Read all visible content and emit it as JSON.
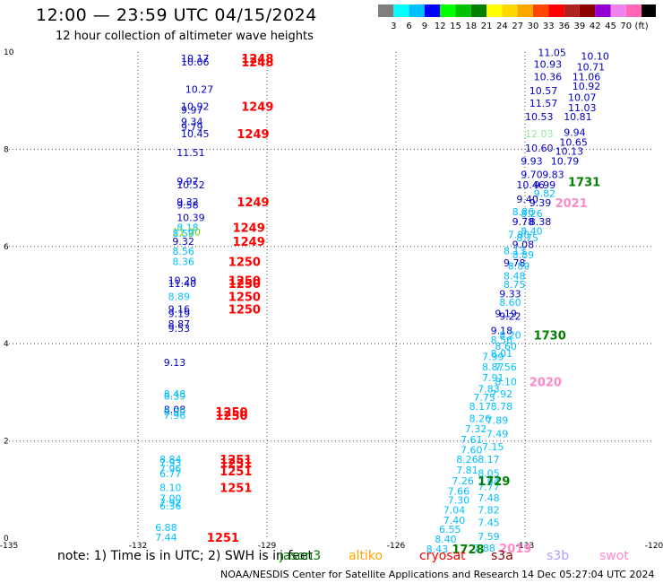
{
  "header": {
    "title": "12:00 — 23:59 UTC 04/15/2024",
    "subtitle": "12 hour collection of altimeter wave heights"
  },
  "colorbar": {
    "colors": [
      "#7f7f7f",
      "#00ffff",
      "#00bfff",
      "#0000ff",
      "#00ff00",
      "#00c000",
      "#008000",
      "#ffff00",
      "#ffd700",
      "#ffa500",
      "#ff4500",
      "#ff0000",
      "#b22222",
      "#8b0000",
      "#9400d3",
      "#ee82ee",
      "#ff69b4",
      "#000000"
    ],
    "labels": [
      "3",
      "6",
      "9",
      "12",
      "15",
      "18",
      "21",
      "24",
      "27",
      "30",
      "33",
      "36",
      "39",
      "42",
      "45",
      "70",
      "(ft)"
    ]
  },
  "chart_data": {
    "type": "scatter",
    "title": "12:00 — 23:59 UTC 04/15/2024",
    "xlabel": "",
    "ylabel": "",
    "xlim": [
      -135,
      -120
    ],
    "ylim": [
      0,
      10
    ],
    "xticks": [
      "-135",
      "-132",
      "-129",
      "-126",
      "-123",
      "-120"
    ],
    "yticks": [
      "0",
      "2",
      "4",
      "6",
      "8",
      "10"
    ],
    "grid": true,
    "wave_heights": [
      {
        "lon": -131.0,
        "lat": 9.87,
        "text": "10.17",
        "color": "#0000c8"
      },
      {
        "lon": -131.0,
        "lat": 9.8,
        "text": "10.06",
        "color": "#0000c8"
      },
      {
        "lon": -130.9,
        "lat": 9.23,
        "text": "10.27",
        "color": "#0000c8"
      },
      {
        "lon": -131.0,
        "lat": 8.88,
        "text": "10.92",
        "color": "#0000c8"
      },
      {
        "lon": -131.0,
        "lat": 8.81,
        "text": "9.97",
        "color": "#0000c8"
      },
      {
        "lon": -131.0,
        "lat": 8.57,
        "text": "9.34",
        "color": "#0000c8"
      },
      {
        "lon": -131.0,
        "lat": 8.46,
        "text": "9.79",
        "color": "#0000c8"
      },
      {
        "lon": -131.0,
        "lat": 8.32,
        "text": "10.45",
        "color": "#0000c8"
      },
      {
        "lon": -131.1,
        "lat": 7.93,
        "text": "11.51",
        "color": "#0000c8"
      },
      {
        "lon": -131.1,
        "lat": 7.34,
        "text": "9.97",
        "color": "#0000c8"
      },
      {
        "lon": -131.1,
        "lat": 7.27,
        "text": "10.52",
        "color": "#0000c8"
      },
      {
        "lon": -131.1,
        "lat": 6.92,
        "text": "9.32",
        "color": "#0000c8"
      },
      {
        "lon": -131.1,
        "lat": 6.85,
        "text": "9.58",
        "color": "#0000c8"
      },
      {
        "lon": -131.1,
        "lat": 6.6,
        "text": "10.39",
        "color": "#0000c8"
      },
      {
        "lon": -131.1,
        "lat": 6.39,
        "text": "8.18",
        "color": "#00bfff"
      },
      {
        "lon": -131.2,
        "lat": 6.3,
        "text": "11.20",
        "color": "#80d000"
      },
      {
        "lon": -131.2,
        "lat": 6.27,
        "text": "8.59",
        "color": "#00bfff"
      },
      {
        "lon": -131.2,
        "lat": 6.11,
        "text": "9.32",
        "color": "#0000c8"
      },
      {
        "lon": -131.2,
        "lat": 5.9,
        "text": "8.56",
        "color": "#00bfff"
      },
      {
        "lon": -131.2,
        "lat": 5.69,
        "text": "8.36",
        "color": "#00bfff"
      },
      {
        "lon": -131.3,
        "lat": 5.3,
        "text": "10.29",
        "color": "#0000c8"
      },
      {
        "lon": -131.3,
        "lat": 5.24,
        "text": "11.40",
        "color": "#0000c8"
      },
      {
        "lon": -131.3,
        "lat": 4.97,
        "text": "8.89",
        "color": "#00bfff"
      },
      {
        "lon": -131.3,
        "lat": 4.71,
        "text": "9.16",
        "color": "#0000c8"
      },
      {
        "lon": -131.3,
        "lat": 4.62,
        "text": "9.19",
        "color": "#0000c8"
      },
      {
        "lon": -131.3,
        "lat": 4.41,
        "text": "8.87",
        "color": "#0000c8"
      },
      {
        "lon": -131.3,
        "lat": 4.32,
        "text": "9.53",
        "color": "#0000c8"
      },
      {
        "lon": -131.4,
        "lat": 3.62,
        "text": "9.13",
        "color": "#0000c8"
      },
      {
        "lon": -131.4,
        "lat": 2.97,
        "text": "8.48",
        "color": "#00bfff"
      },
      {
        "lon": -131.4,
        "lat": 2.92,
        "text": "8.39",
        "color": "#00bfff"
      },
      {
        "lon": -131.4,
        "lat": 2.65,
        "text": "8.08",
        "color": "#0000c8"
      },
      {
        "lon": -131.4,
        "lat": 2.6,
        "text": "8.39",
        "color": "#00bfff"
      },
      {
        "lon": -131.4,
        "lat": 2.53,
        "text": "7.96",
        "color": "#00bfff"
      },
      {
        "lon": -131.5,
        "lat": 1.62,
        "text": "8.84",
        "color": "#00bfff"
      },
      {
        "lon": -131.5,
        "lat": 1.55,
        "text": "7.93",
        "color": "#00bfff"
      },
      {
        "lon": -131.5,
        "lat": 1.43,
        "text": "7.96",
        "color": "#00bfff"
      },
      {
        "lon": -131.5,
        "lat": 1.33,
        "text": "6.77",
        "color": "#00bfff"
      },
      {
        "lon": -131.5,
        "lat": 1.04,
        "text": "8.10",
        "color": "#00bfff"
      },
      {
        "lon": -131.5,
        "lat": 0.82,
        "text": "7.00",
        "color": "#00bfff"
      },
      {
        "lon": -131.5,
        "lat": 0.73,
        "text": "7.92",
        "color": "#00bfff"
      },
      {
        "lon": -131.5,
        "lat": 0.66,
        "text": "6.36",
        "color": "#00bfff"
      },
      {
        "lon": -131.6,
        "lat": 0.22,
        "text": "6.88",
        "color": "#00bfff"
      },
      {
        "lon": -131.6,
        "lat": 0.02,
        "text": "7.44",
        "color": "#00bfff"
      },
      {
        "lon": -122.7,
        "lat": 9.99,
        "text": "11.05",
        "color": "#0000c8"
      },
      {
        "lon": -121.7,
        "lat": 9.92,
        "text": "10.10",
        "color": "#0000c8"
      },
      {
        "lon": -122.8,
        "lat": 9.75,
        "text": "10.93",
        "color": "#0000c8"
      },
      {
        "lon": -121.8,
        "lat": 9.7,
        "text": "10.71",
        "color": "#0000c8"
      },
      {
        "lon": -122.8,
        "lat": 9.49,
        "text": "10.36",
        "color": "#0000c8"
      },
      {
        "lon": -121.9,
        "lat": 9.49,
        "text": "11.06",
        "color": "#0000c8"
      },
      {
        "lon": -122.9,
        "lat": 9.21,
        "text": "10.57",
        "color": "#0000c8"
      },
      {
        "lon": -121.9,
        "lat": 9.3,
        "text": "10.92",
        "color": "#0000c8"
      },
      {
        "lon": -122.0,
        "lat": 9.07,
        "text": "10.07",
        "color": "#0000c8"
      },
      {
        "lon": -122.9,
        "lat": 8.95,
        "text": "11.57",
        "color": "#0000c8"
      },
      {
        "lon": -122.0,
        "lat": 8.86,
        "text": "11.03",
        "color": "#0000c8"
      },
      {
        "lon": -123.0,
        "lat": 8.67,
        "text": "10.53",
        "color": "#0000c8"
      },
      {
        "lon": -122.1,
        "lat": 8.67,
        "text": "10.81",
        "color": "#0000c8"
      },
      {
        "lon": -123.0,
        "lat": 8.32,
        "text": "12.03",
        "color": "#90ee90"
      },
      {
        "lon": -122.1,
        "lat": 8.35,
        "text": "9.94",
        "color": "#0000c8"
      },
      {
        "lon": -122.2,
        "lat": 8.15,
        "text": "10.65",
        "color": "#0000c8"
      },
      {
        "lon": -123.0,
        "lat": 8.03,
        "text": "10.60",
        "color": "#0000c8"
      },
      {
        "lon": -122.3,
        "lat": 7.96,
        "text": "10.13",
        "color": "#0000c8"
      },
      {
        "lon": -123.1,
        "lat": 7.76,
        "text": "9.93",
        "color": "#0000c8"
      },
      {
        "lon": -122.4,
        "lat": 7.76,
        "text": "10.79",
        "color": "#0000c8"
      },
      {
        "lon": -123.1,
        "lat": 7.48,
        "text": "9.70",
        "color": "#0000c8"
      },
      {
        "lon": -122.6,
        "lat": 7.48,
        "text": "9.83",
        "color": "#0000c8"
      },
      {
        "lon": -123.2,
        "lat": 7.27,
        "text": "10.46",
        "color": "#0000c8"
      },
      {
        "lon": -122.8,
        "lat": 7.27,
        "text": "9.99",
        "color": "#0000c8"
      },
      {
        "lon": -122.8,
        "lat": 7.09,
        "text": "9.82",
        "color": "#00bfff"
      },
      {
        "lon": -123.2,
        "lat": 6.97,
        "text": "9.40",
        "color": "#0000c8"
      },
      {
        "lon": -122.9,
        "lat": 6.9,
        "text": "9.39",
        "color": "#0000c8"
      },
      {
        "lon": -123.3,
        "lat": 6.72,
        "text": "8.86",
        "color": "#00bfff"
      },
      {
        "lon": -123.1,
        "lat": 6.68,
        "text": "8.26",
        "color": "#00bfff"
      },
      {
        "lon": -123.3,
        "lat": 6.51,
        "text": "9.78",
        "color": "#0000c8"
      },
      {
        "lon": -122.9,
        "lat": 6.51,
        "text": "8.38",
        "color": "#0000c8"
      },
      {
        "lon": -123.1,
        "lat": 6.32,
        "text": "8.40",
        "color": "#00bfff"
      },
      {
        "lon": -123.4,
        "lat": 6.25,
        "text": "7.80",
        "color": "#00bfff"
      },
      {
        "lon": -123.2,
        "lat": 6.18,
        "text": "8.75",
        "color": "#00bfff"
      },
      {
        "lon": -123.3,
        "lat": 6.04,
        "text": "9.08",
        "color": "#0000c8"
      },
      {
        "lon": -123.5,
        "lat": 5.91,
        "text": "8.13",
        "color": "#00bfff"
      },
      {
        "lon": -123.3,
        "lat": 5.83,
        "text": "8.89",
        "color": "#00bfff"
      },
      {
        "lon": -123.5,
        "lat": 5.66,
        "text": "9.78",
        "color": "#0000c8"
      },
      {
        "lon": -123.4,
        "lat": 5.6,
        "text": "8.89",
        "color": "#00bfff"
      },
      {
        "lon": -123.5,
        "lat": 5.4,
        "text": "8.48",
        "color": "#00bfff"
      },
      {
        "lon": -123.5,
        "lat": 5.22,
        "text": "8.75",
        "color": "#00bfff"
      },
      {
        "lon": -123.6,
        "lat": 5.03,
        "text": "9.33",
        "color": "#0000c8"
      },
      {
        "lon": -123.6,
        "lat": 4.85,
        "text": "8.60",
        "color": "#00bfff"
      },
      {
        "lon": -123.7,
        "lat": 4.62,
        "text": "9.19",
        "color": "#0000c8"
      },
      {
        "lon": -123.6,
        "lat": 4.57,
        "text": "9.22",
        "color": "#0000c8"
      },
      {
        "lon": -123.8,
        "lat": 4.27,
        "text": "9.18",
        "color": "#0000c8"
      },
      {
        "lon": -123.6,
        "lat": 4.18,
        "text": "8.20",
        "color": "#00bfff"
      },
      {
        "lon": -123.8,
        "lat": 4.08,
        "text": "8.56",
        "color": "#00bfff"
      },
      {
        "lon": -123.7,
        "lat": 3.95,
        "text": "8.60",
        "color": "#00bfff"
      },
      {
        "lon": -123.8,
        "lat": 3.8,
        "text": "8.01",
        "color": "#00bfff"
      },
      {
        "lon": -124.0,
        "lat": 3.74,
        "text": "7.99",
        "color": "#00bfff"
      },
      {
        "lon": -124.0,
        "lat": 3.52,
        "text": "8.87",
        "color": "#00bfff"
      },
      {
        "lon": -123.7,
        "lat": 3.52,
        "text": "7.56",
        "color": "#00bfff"
      },
      {
        "lon": -124.0,
        "lat": 3.3,
        "text": "7.91",
        "color": "#00bfff"
      },
      {
        "lon": -123.7,
        "lat": 3.22,
        "text": "8.10",
        "color": "#00bfff"
      },
      {
        "lon": -124.1,
        "lat": 3.07,
        "text": "7.83",
        "color": "#00bfff"
      },
      {
        "lon": -123.8,
        "lat": 2.97,
        "text": "7.92",
        "color": "#00bfff"
      },
      {
        "lon": -124.2,
        "lat": 2.9,
        "text": "7.75",
        "color": "#00bfff"
      },
      {
        "lon": -124.3,
        "lat": 2.71,
        "text": "8.17",
        "color": "#00bfff"
      },
      {
        "lon": -123.8,
        "lat": 2.71,
        "text": "8.78",
        "color": "#00bfff"
      },
      {
        "lon": -124.3,
        "lat": 2.46,
        "text": "8.26",
        "color": "#00bfff"
      },
      {
        "lon": -123.9,
        "lat": 2.43,
        "text": "7.89",
        "color": "#00bfff"
      },
      {
        "lon": -124.4,
        "lat": 2.25,
        "text": "7.32",
        "color": "#00bfff"
      },
      {
        "lon": -123.9,
        "lat": 2.15,
        "text": "7.49",
        "color": "#00bfff"
      },
      {
        "lon": -124.5,
        "lat": 2.03,
        "text": "7.61",
        "color": "#00bfff"
      },
      {
        "lon": -124.0,
        "lat": 1.88,
        "text": "7.15",
        "color": "#00bfff"
      },
      {
        "lon": -124.5,
        "lat": 1.82,
        "text": "7.60",
        "color": "#00bfff"
      },
      {
        "lon": -124.6,
        "lat": 1.62,
        "text": "8.26",
        "color": "#00bfff"
      },
      {
        "lon": -124.1,
        "lat": 1.62,
        "text": "8.17",
        "color": "#00bfff"
      },
      {
        "lon": -124.6,
        "lat": 1.4,
        "text": "7.81",
        "color": "#00bfff"
      },
      {
        "lon": -124.1,
        "lat": 1.34,
        "text": "8.05",
        "color": "#00bfff"
      },
      {
        "lon": -124.7,
        "lat": 1.18,
        "text": "7.26",
        "color": "#00bfff"
      },
      {
        "lon": -124.1,
        "lat": 1.16,
        "text": "7.94",
        "color": "#00bfff"
      },
      {
        "lon": -124.1,
        "lat": 1.06,
        "text": "7.77",
        "color": "#00bfff"
      },
      {
        "lon": -124.8,
        "lat": 0.97,
        "text": "7.66",
        "color": "#00bfff"
      },
      {
        "lon": -124.1,
        "lat": 0.83,
        "text": "7.48",
        "color": "#00bfff"
      },
      {
        "lon": -124.8,
        "lat": 0.78,
        "text": "7.30",
        "color": "#00bfff"
      },
      {
        "lon": -124.1,
        "lat": 0.58,
        "text": "7.82",
        "color": "#00bfff"
      },
      {
        "lon": -124.9,
        "lat": 0.58,
        "text": "7.04",
        "color": "#00bfff"
      },
      {
        "lon": -124.9,
        "lat": 0.37,
        "text": "7.40",
        "color": "#00bfff"
      },
      {
        "lon": -124.1,
        "lat": 0.32,
        "text": "7.45",
        "color": "#00bfff"
      },
      {
        "lon": -125.0,
        "lat": 0.18,
        "text": "6.55",
        "color": "#00bfff"
      },
      {
        "lon": -124.1,
        "lat": 0.04,
        "text": "7.59",
        "color": "#00bfff"
      },
      {
        "lon": -125.1,
        "lat": -0.02,
        "text": "8.40",
        "color": "#00bfff"
      },
      {
        "lon": -124.2,
        "lat": -0.2,
        "text": "7.88",
        "color": "#00bfff"
      },
      {
        "lon": -125.3,
        "lat": -0.22,
        "text": "8.43",
        "color": "#00bfff"
      }
    ],
    "time_labels": [
      {
        "lon": -129.6,
        "lat": 9.87,
        "text": "1248",
        "color": "#ff0000"
      },
      {
        "lon": -129.6,
        "lat": 9.8,
        "text": "1248",
        "color": "#ff0000"
      },
      {
        "lon": -129.6,
        "lat": 8.88,
        "text": "1249",
        "color": "#ff0000"
      },
      {
        "lon": -129.7,
        "lat": 8.32,
        "text": "1249",
        "color": "#ff0000"
      },
      {
        "lon": -129.7,
        "lat": 6.92,
        "text": "1249",
        "color": "#ff0000"
      },
      {
        "lon": -129.8,
        "lat": 6.39,
        "text": "1249",
        "color": "#ff0000"
      },
      {
        "lon": -129.8,
        "lat": 6.11,
        "text": "1249",
        "color": "#ff0000"
      },
      {
        "lon": -129.9,
        "lat": 5.69,
        "text": "1250",
        "color": "#ff0000"
      },
      {
        "lon": -129.9,
        "lat": 5.3,
        "text": "1250",
        "color": "#ff0000"
      },
      {
        "lon": -129.9,
        "lat": 5.24,
        "text": "1250",
        "color": "#ff0000"
      },
      {
        "lon": -129.9,
        "lat": 4.97,
        "text": "1250",
        "color": "#ff0000"
      },
      {
        "lon": -129.9,
        "lat": 4.71,
        "text": "1250",
        "color": "#ff0000"
      },
      {
        "lon": -130.2,
        "lat": 2.6,
        "text": "1250",
        "color": "#ff0000"
      },
      {
        "lon": -130.2,
        "lat": 2.53,
        "text": "1250",
        "color": "#ff0000"
      },
      {
        "lon": -130.1,
        "lat": 1.62,
        "text": "1251",
        "color": "#ff0000"
      },
      {
        "lon": -130.1,
        "lat": 1.55,
        "text": "1251",
        "color": "#ff0000"
      },
      {
        "lon": -130.1,
        "lat": 1.38,
        "text": "1251",
        "color": "#ff0000"
      },
      {
        "lon": -130.1,
        "lat": 1.04,
        "text": "1251",
        "color": "#ff0000"
      },
      {
        "lon": -130.4,
        "lat": 0.02,
        "text": "1251",
        "color": "#ff0000"
      },
      {
        "lon": -122.0,
        "lat": 7.33,
        "text": "1731",
        "color": "#008000"
      },
      {
        "lon": -122.3,
        "lat": 6.9,
        "text": "2021",
        "color": "#ff88cc"
      },
      {
        "lon": -122.8,
        "lat": 4.18,
        "text": "1730",
        "color": "#008000"
      },
      {
        "lon": -122.9,
        "lat": 3.22,
        "text": "2020",
        "color": "#ff88cc"
      },
      {
        "lon": -124.1,
        "lat": 1.18,
        "text": "1729",
        "color": "#008000"
      },
      {
        "lon": -124.7,
        "lat": -0.22,
        "text": "1728",
        "color": "#008000"
      },
      {
        "lon": -123.6,
        "lat": -0.2,
        "text": "2019",
        "color": "#ff88cc"
      }
    ]
  },
  "footer": {
    "note": "note: 1) Time is in UTC; 2) SWH is in feet",
    "satellites": [
      {
        "name": "jason3",
        "color": "#008000"
      },
      {
        "name": "altiko",
        "color": "#ffa500"
      },
      {
        "name": "cryosat",
        "color": "#ff0000"
      },
      {
        "name": "s3a",
        "color": "#8b0000"
      },
      {
        "name": "s3b",
        "color": "#b0a0ff"
      },
      {
        "name": "swot",
        "color": "#ff88cc"
      }
    ],
    "credit": "NOAA/NESDIS Center for Satellite Applications and Research",
    "timestamp": "14 Dec 05:27:04 UTC 2024"
  }
}
